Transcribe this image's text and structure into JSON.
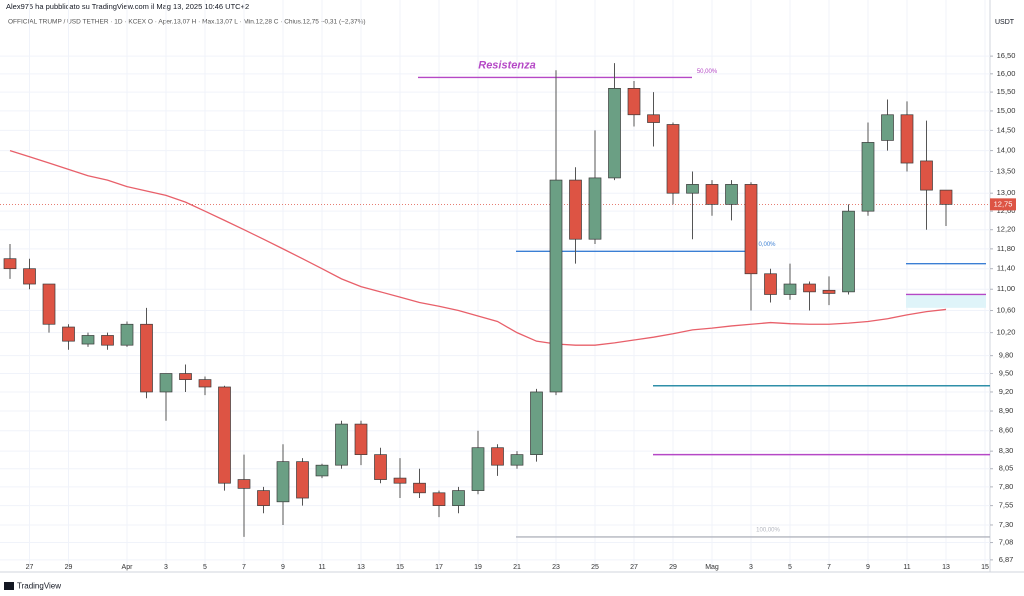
{
  "chart_data": {
    "type": "candlestick",
    "author_line": "Alex975 ha pubblicato su TradingView.com il Mag 13, 2025 10:46 UTC+2",
    "title": "OFFICIAL TRUMP / USD TETHER · 1D · KCEX  O · Aper.13,07  H · Max.13,07  L · Min.12,28  C · Chius.12,75  −0,31 (−2,37%)",
    "currency": "USDT",
    "brand": "TradingView",
    "log_scale": true,
    "grid": true,
    "categories": [
      null,
      "27",
      null,
      "29",
      null,
      null,
      "Apr",
      null,
      "3",
      null,
      "5",
      null,
      "7",
      null,
      "9",
      null,
      "11",
      null,
      "13",
      null,
      "15",
      null,
      "17",
      null,
      "19",
      null,
      "21",
      null,
      "23",
      null,
      "25",
      null,
      "27",
      null,
      "29",
      null,
      "Mag",
      null,
      "3",
      null,
      "5",
      null,
      "7",
      null,
      "9",
      null,
      "11",
      null,
      "13",
      null,
      "15"
    ],
    "series": [
      {
        "up_color": "#6b9f84",
        "down_color": "#dd5444",
        "open": [
          11.6,
          11.4,
          11.1,
          10.3,
          10.0,
          10.15,
          9.98,
          10.35,
          9.2,
          9.5,
          9.4,
          9.28,
          7.9,
          7.75,
          7.6,
          8.15,
          7.95,
          8.1,
          8.7,
          8.25,
          7.92,
          7.85,
          7.72,
          7.55,
          7.75,
          8.35,
          8.1,
          8.25,
          9.2,
          13.3,
          12.0,
          13.35,
          15.6,
          14.9,
          14.65,
          13.0,
          13.2,
          12.75,
          13.2,
          11.3,
          10.9,
          11.1,
          10.98,
          10.95,
          12.6,
          14.25,
          14.9,
          13.75,
          13.07,
          null,
          null
        ],
        "high": [
          11.9,
          11.6,
          11.1,
          10.35,
          10.2,
          10.2,
          10.4,
          10.65,
          9.5,
          9.65,
          9.45,
          9.3,
          8.25,
          7.8,
          8.4,
          8.2,
          8.12,
          8.75,
          8.75,
          8.35,
          8.2,
          8.05,
          7.75,
          7.8,
          8.6,
          8.4,
          8.3,
          9.25,
          16.1,
          13.6,
          14.5,
          16.3,
          15.8,
          15.5,
          14.7,
          13.5,
          13.3,
          13.3,
          13.25,
          11.4,
          11.5,
          11.15,
          11.25,
          12.75,
          14.7,
          15.3,
          15.25,
          14.75,
          13.07,
          null,
          null
        ],
        "low": [
          11.2,
          11.0,
          10.2,
          9.9,
          9.95,
          9.9,
          9.95,
          9.1,
          8.75,
          9.2,
          9.15,
          7.75,
          7.15,
          7.45,
          7.3,
          7.55,
          7.92,
          8.05,
          8.1,
          7.85,
          7.65,
          7.65,
          7.4,
          7.45,
          7.7,
          7.95,
          8.05,
          8.15,
          9.15,
          11.5,
          11.9,
          13.3,
          14.6,
          14.1,
          12.75,
          12.0,
          12.5,
          12.4,
          10.6,
          10.75,
          10.8,
          10.6,
          10.7,
          10.9,
          12.5,
          14.0,
          13.5,
          12.2,
          12.28,
          null,
          null
        ],
        "close": [
          11.4,
          11.1,
          10.35,
          10.05,
          10.15,
          9.98,
          10.35,
          9.2,
          9.5,
          9.4,
          9.28,
          7.85,
          7.78,
          7.55,
          8.15,
          7.65,
          8.1,
          8.7,
          8.25,
          7.9,
          7.85,
          7.72,
          7.55,
          7.75,
          8.35,
          8.1,
          8.25,
          9.2,
          13.3,
          12.0,
          13.35,
          15.6,
          14.9,
          14.7,
          13.0,
          13.2,
          12.75,
          13.2,
          11.3,
          10.9,
          11.1,
          10.95,
          10.92,
          12.6,
          14.2,
          14.9,
          13.7,
          13.07,
          12.75,
          null,
          null
        ],
        "last_label": "12,75"
      }
    ],
    "moving_average": {
      "color": "#e8606a",
      "values": [
        14.0,
        13.85,
        13.7,
        13.55,
        13.4,
        13.3,
        13.15,
        13.05,
        12.95,
        12.8,
        12.6,
        12.4,
        12.2,
        12.0,
        11.8,
        11.6,
        11.4,
        11.2,
        11.05,
        10.95,
        10.85,
        10.75,
        10.68,
        10.6,
        10.5,
        10.4,
        10.2,
        10.05,
        10.0,
        9.98,
        9.98,
        10.02,
        10.07,
        10.12,
        10.18,
        10.25,
        10.28,
        10.32,
        10.35,
        10.38,
        10.36,
        10.35,
        10.35,
        10.37,
        10.4,
        10.45,
        10.52,
        10.58,
        10.62,
        null,
        null
      ]
    },
    "levels": [
      {
        "value": 15.9,
        "color": "#b548c6"
      },
      {
        "value": 11.75,
        "color": "#3b7fd4"
      },
      {
        "value": 11.5,
        "color": "#3b7fd4"
      },
      {
        "value": 10.9,
        "color": "#b548c6"
      },
      {
        "value": 9.3,
        "color": "#2f8fa8"
      },
      {
        "value": 8.25,
        "color": "#b548c6"
      },
      {
        "value": 7.15,
        "color": "#b2b5be"
      }
    ],
    "zone": {
      "low": 10.65,
      "high": 10.9,
      "color": "#dff4f9"
    },
    "annotations": [
      "Resistenza",
      "50,00%",
      "0,00%",
      "100,00%"
    ],
    "ylim": [
      6.75,
      17.57
    ],
    "yticks": [
      {
        "value": 16.5,
        "label": "16,50"
      },
      {
        "value": 16,
        "label": "16,00"
      },
      {
        "value": 15.5,
        "label": "15,50"
      },
      {
        "value": 15,
        "label": "15,00"
      },
      {
        "value": 14.5,
        "label": "14,50"
      },
      {
        "value": 14,
        "label": "14,00"
      },
      {
        "value": 13.5,
        "label": "13,50"
      },
      {
        "value": 13,
        "label": "13,00"
      },
      {
        "value": 12.6,
        "label": "12,60"
      },
      {
        "value": 12.2,
        "label": "12,20"
      },
      {
        "value": 11.8,
        "label": "11,80"
      },
      {
        "value": 11.4,
        "label": "11,40"
      },
      {
        "value": 11,
        "label": "11,00"
      },
      {
        "value": 10.6,
        "label": "10,60"
      },
      {
        "value": 10.2,
        "label": "10,20"
      },
      {
        "value": 9.8,
        "label": "9,80"
      },
      {
        "value": 9.5,
        "label": "9,50"
      },
      {
        "value": 9.2,
        "label": "9,20"
      },
      {
        "value": 8.9,
        "label": "8,90"
      },
      {
        "value": 8.6,
        "label": "8,60"
      },
      {
        "value": 8.3,
        "label": "8,30"
      },
      {
        "value": 8.05,
        "label": "8,05"
      },
      {
        "value": 7.8,
        "label": "7,80"
      },
      {
        "value": 7.55,
        "label": "7,55"
      },
      {
        "value": 7.3,
        "label": "7,30"
      },
      {
        "value": 7.08,
        "label": "7,08"
      },
      {
        "value": 6.87,
        "label": "6,87"
      }
    ]
  }
}
